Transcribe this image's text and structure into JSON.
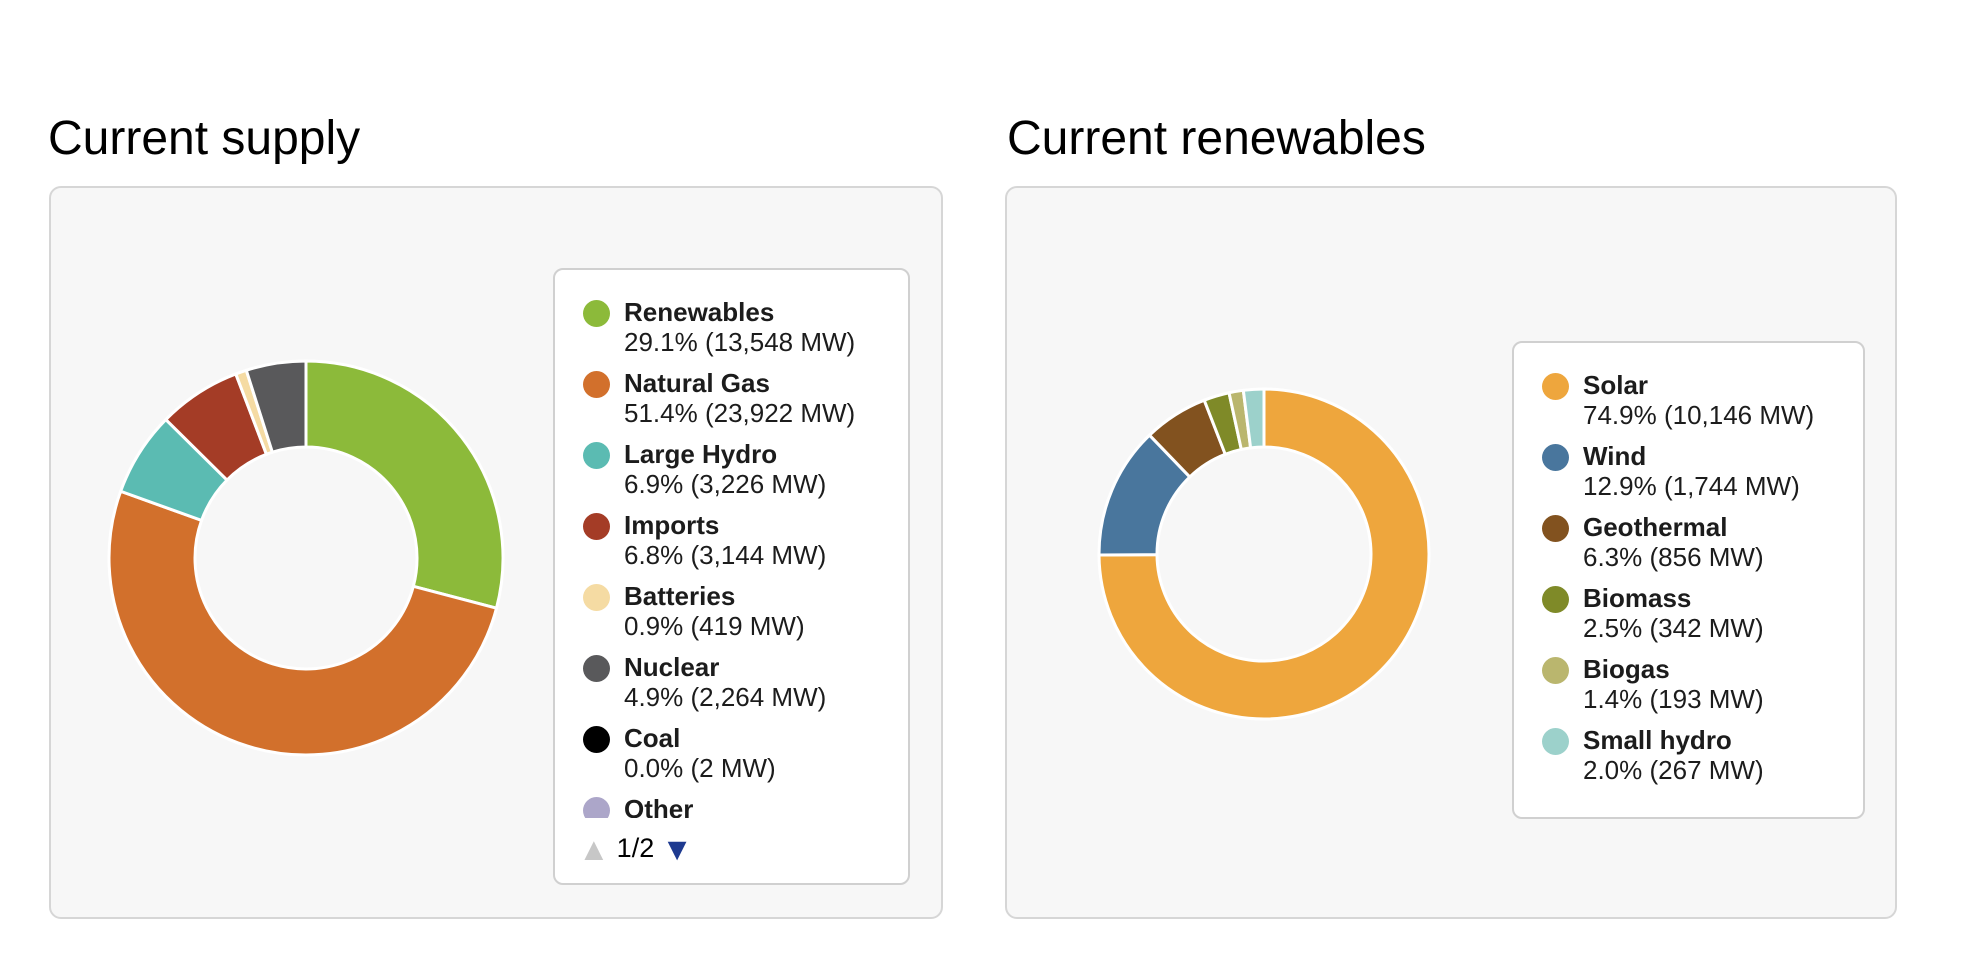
{
  "chart_data": [
    {
      "type": "donut",
      "title": "Current supply",
      "units": "MW",
      "start_angle_deg": 0,
      "direction": "clockwise",
      "legend_position": "right",
      "categories": [
        "Renewables",
        "Natural Gas",
        "Large Hydro",
        "Imports",
        "Batteries",
        "Nuclear",
        "Coal",
        "Other"
      ],
      "values_percent": [
        29.1,
        51.4,
        6.9,
        6.8,
        0.9,
        4.9,
        0.0,
        0.0
      ],
      "values_mw": [
        13548,
        23922,
        3226,
        3144,
        419,
        2264,
        2,
        null
      ],
      "colors": [
        "#8CBA3A",
        "#D2702C",
        "#5BBBB2",
        "#A43C26",
        "#F5DBA3",
        "#59595B",
        "#000000",
        "#ACA6C9"
      ],
      "legend_entries": [
        {
          "label": "Renewables",
          "value_text": "29.1% (13,548 MW)"
        },
        {
          "label": "Natural Gas",
          "value_text": "51.4% (23,922 MW)"
        },
        {
          "label": "Large Hydro",
          "value_text": "6.9% (3,226 MW)"
        },
        {
          "label": "Imports",
          "value_text": "6.8% (3,144 MW)"
        },
        {
          "label": "Batteries",
          "value_text": "0.9% (419 MW)"
        },
        {
          "label": "Nuclear",
          "value_text": "4.9% (2,264 MW)"
        },
        {
          "label": "Coal",
          "value_text": "0.0% (2 MW)"
        },
        {
          "label": "Other",
          "value_text": ""
        }
      ],
      "legend_pagination": {
        "page_text": "1/2",
        "up_glyph": "▲",
        "down_glyph": "▼",
        "up_color": "#C7C7C7",
        "down_color": "#1E3A90"
      }
    },
    {
      "type": "donut",
      "title": "Current renewables",
      "units": "MW",
      "start_angle_deg": 0,
      "direction": "clockwise",
      "legend_position": "right",
      "categories": [
        "Solar",
        "Wind",
        "Geothermal",
        "Biomass",
        "Biogas",
        "Small hydro"
      ],
      "values_percent": [
        74.9,
        12.9,
        6.3,
        2.5,
        1.4,
        2.0
      ],
      "values_mw": [
        10146,
        1744,
        856,
        342,
        193,
        267
      ],
      "colors": [
        "#EEA63D",
        "#49769D",
        "#82521F",
        "#7F8A28",
        "#BAB66E",
        "#9CD1CB"
      ],
      "legend_entries": [
        {
          "label": "Solar",
          "value_text": "74.9% (10,146 MW)"
        },
        {
          "label": "Wind",
          "value_text": "12.9% (1,744 MW)"
        },
        {
          "label": "Geothermal",
          "value_text": "6.3% (856 MW)"
        },
        {
          "label": "Biomass",
          "value_text": "2.5% (342 MW)"
        },
        {
          "label": "Biogas",
          "value_text": "1.4% (193 MW)"
        },
        {
          "label": "Small hydro",
          "value_text": "2.0% (267 MW)"
        }
      ]
    }
  ]
}
